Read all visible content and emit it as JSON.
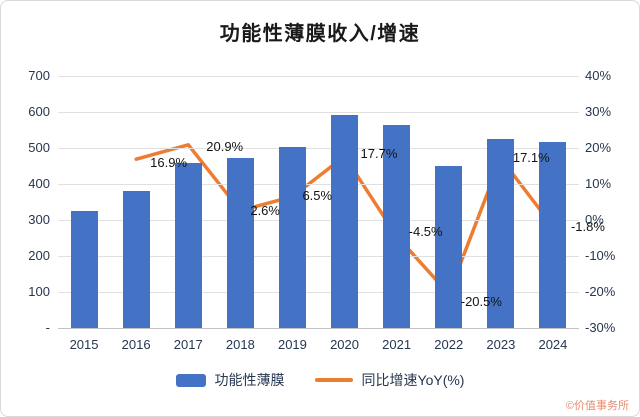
{
  "title": "功能性薄膜收入/增速",
  "watermark": "©价值事务所",
  "colors": {
    "bar": "#4472C4",
    "line": "#ED7D31"
  },
  "legend": [
    {
      "label": "功能性薄膜",
      "type": "bar",
      "color": "#4472C4"
    },
    {
      "label": "同比增速YoY(%)",
      "type": "line",
      "color": "#ED7D31"
    }
  ],
  "chart_data": {
    "type": "combo",
    "title": "功能性薄膜收入/增速",
    "categories": [
      "2015",
      "2016",
      "2017",
      "2018",
      "2019",
      "2020",
      "2021",
      "2022",
      "2023",
      "2024"
    ],
    "series": [
      {
        "name": "功能性薄膜",
        "type": "bar",
        "axis": "left",
        "color": "#4472C4",
        "values": [
          325,
          380,
          459,
          471,
          502,
          591,
          564,
          449,
          525,
          516
        ]
      },
      {
        "name": "同比增速YoY(%)",
        "type": "line",
        "axis": "right",
        "color": "#ED7D31",
        "values": [
          null,
          16.9,
          20.9,
          2.6,
          6.5,
          17.7,
          -4.5,
          -20.5,
          17.1,
          -1.8
        ],
        "labels": [
          null,
          "16.9%",
          "20.9%",
          "2.6%",
          "6.5%",
          "17.7%",
          "-4.5%",
          "-20.5%",
          "17.1%",
          "-1.8%"
        ]
      }
    ],
    "left_axis": {
      "min": 0,
      "max": 700,
      "step": 100,
      "tick_labels": [
        "700",
        "600",
        "500",
        "400",
        "300",
        "200",
        "100",
        "-"
      ]
    },
    "right_axis": {
      "min": -30,
      "max": 40,
      "step": 10,
      "tick_labels": [
        "40%",
        "30%",
        "20%",
        "10%",
        "0%",
        "-10%",
        "-20%",
        "-30%"
      ]
    },
    "grid": true,
    "legend_position": "bottom"
  }
}
